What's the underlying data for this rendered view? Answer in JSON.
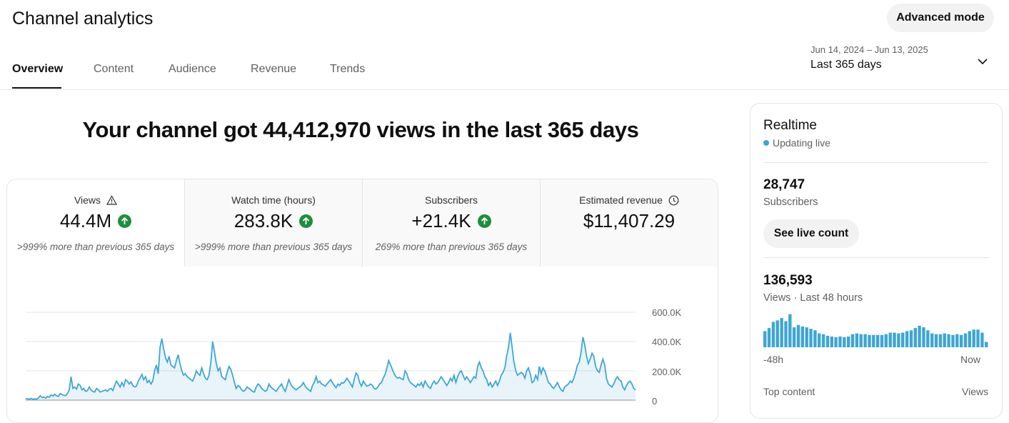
{
  "header": {
    "title": "Channel analytics",
    "advanced_mode": "Advanced mode"
  },
  "tabs": [
    {
      "label": "Overview",
      "active": true
    },
    {
      "label": "Content"
    },
    {
      "label": "Audience"
    },
    {
      "label": "Revenue"
    },
    {
      "label": "Trends"
    }
  ],
  "date_range": {
    "range": "Jun 14, 2024 – Jun 13, 2025",
    "label": "Last 365 days"
  },
  "headline": "Your channel got 44,412,970 views in the last 365 days",
  "metrics": [
    {
      "label": "Views",
      "value": "44.4M",
      "note": ">999% more than previous 365 days",
      "icon": "warning-icon",
      "trend": "up"
    },
    {
      "label": "Watch time (hours)",
      "value": "283.8K",
      "note": ">999% more than previous 365 days",
      "trend": "up"
    },
    {
      "label": "Subscribers",
      "value": "+21.4K",
      "note": "269% more than previous 365 days",
      "trend": "up"
    },
    {
      "label": "Estimated revenue",
      "value": "$11,407.29",
      "icon": "clock-icon"
    }
  ],
  "chart_data": {
    "type": "area",
    "series": [
      {
        "values": [
          8000,
          10000,
          6000,
          12000,
          5000,
          9000,
          7000,
          15000,
          30000,
          18000,
          22000,
          14000,
          25000,
          20000,
          35000,
          28000,
          40000,
          30000,
          25000,
          45000,
          38000,
          32000,
          30000,
          45000,
          70000,
          160000,
          80000,
          90000,
          75000,
          110000,
          100000,
          70000,
          80000,
          60000,
          65000,
          90000,
          70000,
          60000,
          55000,
          80000,
          70000,
          55000,
          60000,
          65000,
          70000,
          60000,
          75000,
          80000,
          65000,
          100000,
          130000,
          110000,
          90000,
          120000,
          95000,
          140000,
          130000,
          110000,
          125000,
          100000,
          90000,
          95000,
          130000,
          150000,
          175000,
          140000,
          160000,
          120000,
          135000,
          110000,
          130000,
          200000,
          240000,
          180000,
          360000,
          420000,
          350000,
          290000,
          260000,
          300000,
          240000,
          230000,
          220000,
          270000,
          310000,
          250000,
          200000,
          170000,
          180000,
          160000,
          150000,
          140000,
          130000,
          160000,
          200000,
          180000,
          170000,
          220000,
          180000,
          150000,
          140000,
          170000,
          260000,
          400000,
          330000,
          250000,
          200000,
          220000,
          160000,
          150000,
          140000,
          190000,
          230000,
          210000,
          170000,
          120000,
          80000,
          100000,
          90000,
          70000,
          60000,
          70000,
          90000,
          80000,
          70000,
          60000,
          55000,
          90000,
          110000,
          100000,
          80000,
          70000,
          60000,
          70000,
          110000,
          90000,
          80000,
          70000,
          60000,
          80000,
          95000,
          110000,
          80000,
          60000,
          100000,
          140000,
          110000,
          90000,
          80000,
          70000,
          80000,
          90000,
          100000,
          120000,
          95000,
          80000,
          70000,
          60000,
          100000,
          120000,
          160000,
          120000,
          130000,
          110000,
          105000,
          95000,
          110000,
          125000,
          140000,
          120000,
          100000,
          85000,
          110000,
          100000,
          120000,
          115000,
          130000,
          150000,
          130000,
          110000,
          90000,
          140000,
          185000,
          170000,
          120000,
          95000,
          130000,
          110000,
          95000,
          100000,
          110000,
          100000,
          80000,
          75000,
          90000,
          110000,
          120000,
          150000,
          175000,
          220000,
          270000,
          240000,
          210000,
          180000,
          160000,
          150000,
          155000,
          145000,
          140000,
          200000,
          180000,
          140000,
          120000,
          110000,
          100000,
          90000,
          110000,
          100000,
          120000,
          90000,
          130000,
          110000,
          90000,
          80000,
          110000,
          130000,
          110000,
          120000,
          140000,
          160000,
          140000,
          120000,
          100000,
          120000,
          150000,
          130000,
          170000,
          120000,
          160000,
          190000,
          200000,
          170000,
          140000,
          160000,
          140000,
          120000,
          140000,
          160000,
          150000,
          230000,
          260000,
          220000,
          200000,
          160000,
          140000,
          100000,
          120000,
          90000,
          110000,
          130000,
          100000,
          130000,
          170000,
          190000,
          220000,
          300000,
          360000,
          460000,
          360000,
          260000,
          200000,
          170000,
          180000,
          190000,
          180000,
          150000,
          200000,
          220000,
          180000,
          120000,
          130000,
          170000,
          140000,
          230000,
          180000,
          220000,
          200000,
          160000,
          120000,
          110000,
          90000,
          80000,
          100000,
          120000,
          90000,
          70000,
          60000,
          90000,
          100000,
          110000,
          130000,
          120000,
          150000,
          190000,
          240000,
          260000,
          330000,
          430000,
          380000,
          300000,
          250000,
          280000,
          320000,
          300000,
          230000,
          200000,
          190000,
          240000,
          280000,
          240000,
          150000,
          110000,
          100000,
          90000,
          110000,
          140000,
          160000,
          140000,
          130000,
          90000,
          70000,
          100000,
          120000,
          130000,
          110000,
          80000,
          70000
        ]
      }
    ],
    "ylim": [
      0,
      600000
    ],
    "y_ticks": [
      "600.0K",
      "400.0K",
      "200.0K",
      "0"
    ]
  },
  "realtime": {
    "title": "Realtime",
    "status": "Updating live",
    "subscribers": "28,747",
    "subscribers_label": "Subscribers",
    "see_live": "See live count",
    "views": "136,593",
    "views_label": "Views · Last 48 hours",
    "bars": [
      21,
      25,
      33,
      35,
      38,
      34,
      43,
      26,
      29,
      27,
      26,
      24,
      22,
      18,
      17,
      15,
      14,
      13,
      14,
      13,
      14,
      17,
      18,
      17,
      17,
      16,
      16,
      16,
      16,
      17,
      19,
      19,
      18,
      19,
      21,
      22,
      25,
      28,
      26,
      22,
      18,
      17,
      17,
      18,
      17,
      16,
      17,
      16,
      18,
      21,
      23,
      23,
      19,
      7
    ],
    "start_label": "-48h",
    "end_label": "Now",
    "top_content": "Top content",
    "top_views": "Views"
  },
  "colors": {
    "accent": "#3ea6d4",
    "up": "#1e8e3e"
  }
}
